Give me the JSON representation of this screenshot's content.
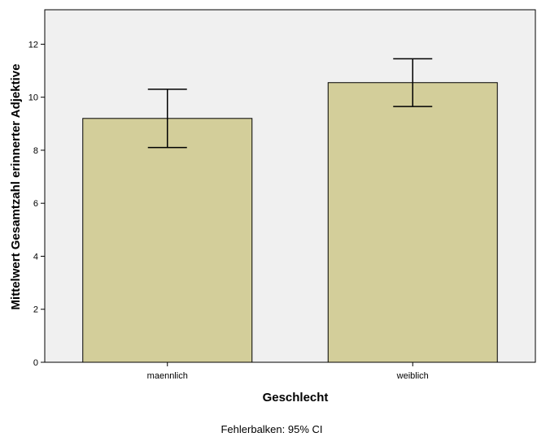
{
  "chart_data": {
    "type": "bar",
    "categories": [
      "maennlich",
      "weiblich"
    ],
    "values": [
      9.2,
      10.55
    ],
    "error_bars": {
      "lower": [
        8.1,
        9.65
      ],
      "upper": [
        10.3,
        11.45
      ]
    },
    "xlabel": "Geschlecht",
    "ylabel": "Mittelwert Gesamtzahl erinnerter Adjektive",
    "ylim": [
      0,
      13.3
    ],
    "yticks": [
      0,
      2,
      4,
      6,
      8,
      10,
      12
    ],
    "footnote": "Fehlerbalken: 95% CI",
    "grid": false,
    "colors": {
      "plot_background": "#f0f0f0",
      "bar_fill": "#d3ce9a",
      "bar_stroke": "#000000",
      "error_bar": "#000000"
    }
  }
}
